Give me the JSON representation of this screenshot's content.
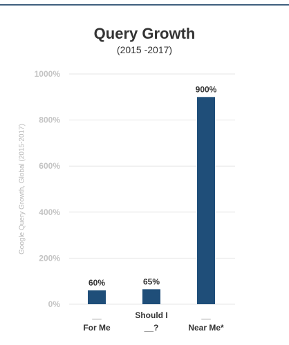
{
  "chart_data": {
    "type": "bar",
    "title": "Query Growth",
    "subtitle": "(2015 -2017)",
    "ylabel": "Google Query Growth, Global (2015-2017)",
    "xlabel": "",
    "categories": [
      [
        "__",
        "For Me"
      ],
      [
        "Should I",
        "__?"
      ],
      [
        "__",
        "Near Me*"
      ]
    ],
    "values": [
      60,
      65,
      900
    ],
    "data_labels": [
      "60%",
      "65%",
      "900%"
    ],
    "ylim": [
      0,
      1000
    ],
    "yticks": [
      0,
      200,
      400,
      600,
      800,
      1000
    ],
    "ytick_labels": [
      "0%",
      "200%",
      "400%",
      "600%",
      "800%",
      "1000%"
    ],
    "grid": true,
    "colors": {
      "bar": "#1f4e79",
      "grid": "#e6e6e6",
      "tick": "#c4c4c4",
      "top_rule": "#3f5f7e"
    }
  }
}
